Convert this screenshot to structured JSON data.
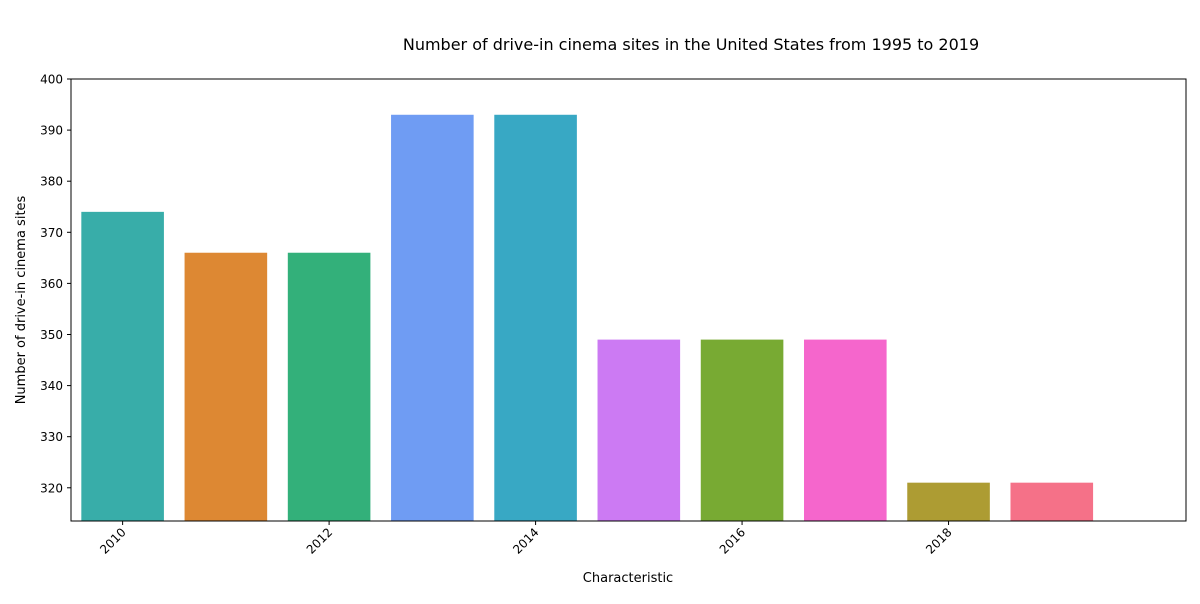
{
  "chart_data": {
    "type": "bar",
    "title": "Number of drive-in cinema sites in the United States from 1995 to 2019",
    "xlabel": "Characteristic",
    "ylabel": "Number of drive-in cinema sites",
    "x": [
      2010,
      2011,
      2012,
      2013,
      2014,
      2015,
      2016,
      2017,
      2018,
      2019
    ],
    "values": [
      374,
      366,
      366,
      393,
      393,
      349,
      349,
      349,
      321,
      321
    ],
    "colors": [
      "#38ada9",
      "#dd8833",
      "#33b07a",
      "#6f9cf3",
      "#38a8c4",
      "#cc7af3",
      "#78aa33",
      "#f566cc",
      "#ad9c33",
      "#f57188"
    ],
    "xlim": [
      2009.5,
      2020.3
    ],
    "ylim": [
      313.5,
      400
    ],
    "x_ticks": [
      2010,
      2012,
      2014,
      2016,
      2018
    ],
    "y_ticks": [
      320,
      330,
      340,
      350,
      360,
      370,
      380,
      390,
      400
    ],
    "grid": false,
    "legend": "none"
  }
}
